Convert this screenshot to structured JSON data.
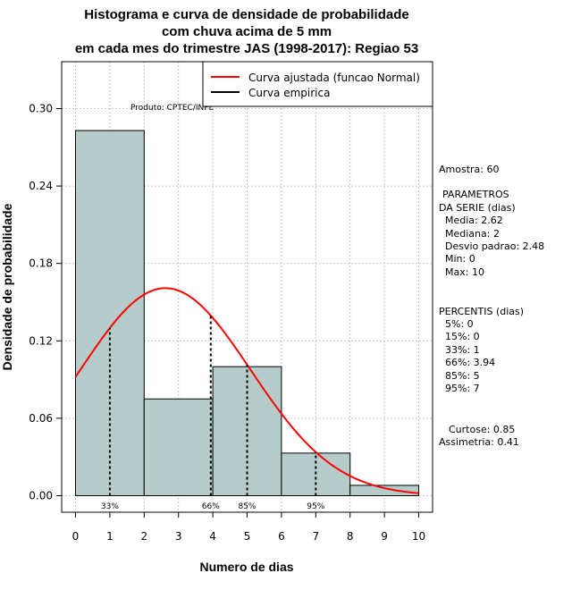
{
  "chart_data": {
    "type": "bar",
    "title_lines": [
      "Histograma e curva de densidade de probabilidade",
      "com chuva acima de 5 mm",
      "em cada mes do trimestre JAS (1998-2017): Regiao 53"
    ],
    "xlabel": "Numero de dias",
    "ylabel": "Densidade de probabilidade",
    "xlim": [
      0,
      10
    ],
    "ylim": [
      0,
      0.3
    ],
    "x_ticks": [
      "0",
      "1",
      "2",
      "3",
      "4",
      "5",
      "6",
      "7",
      "8",
      "9",
      "10"
    ],
    "y_ticks": [
      "0.00",
      "0.06",
      "0.12",
      "0.18",
      "0.24",
      "0.30"
    ],
    "bins": [
      {
        "from": 0,
        "to": 2,
        "density": 0.283
      },
      {
        "from": 2,
        "to": 4,
        "density": 0.075
      },
      {
        "from": 4,
        "to": 6,
        "density": 0.1
      },
      {
        "from": 6,
        "to": 8,
        "density": 0.033
      },
      {
        "from": 8,
        "to": 10,
        "density": 0.008
      }
    ],
    "normal_fit": {
      "mean": 2.62,
      "sd": 2.48
    },
    "percentile_lines": [
      {
        "x": 1,
        "label": "33%"
      },
      {
        "x": 3.94,
        "label": "66%"
      },
      {
        "x": 5,
        "label": "85%"
      },
      {
        "x": 7,
        "label": "95%"
      }
    ],
    "legend": {
      "position": "top-right",
      "entries": [
        {
          "label": "Curva ajustada (funcao Normal)",
          "color": "#ff0000"
        },
        {
          "label": "Curva empirica",
          "color": "#000000"
        }
      ]
    },
    "annotation": "Produto: CPTEC/INPE",
    "grid": true,
    "bar_color": "#b5cccb"
  },
  "sidebar": {
    "amostra": "Amostra: 60",
    "param_lines": [
      "PARAMETROS",
      "DA SERIE (dias)",
      "Media: 2.62",
      "Mediana: 2",
      "Desvio padrao: 2.48",
      "Min: 0",
      "Max: 10"
    ],
    "percentis_lines": [
      "PERCENTIS (dias)",
      "5%: 0",
      "15%: 0",
      "33%: 1",
      "66%: 3.94",
      "85%: 5",
      "95%: 7"
    ],
    "curtose": "Curtose: 0.85",
    "assimetria": "Assimetria: 0.41"
  }
}
